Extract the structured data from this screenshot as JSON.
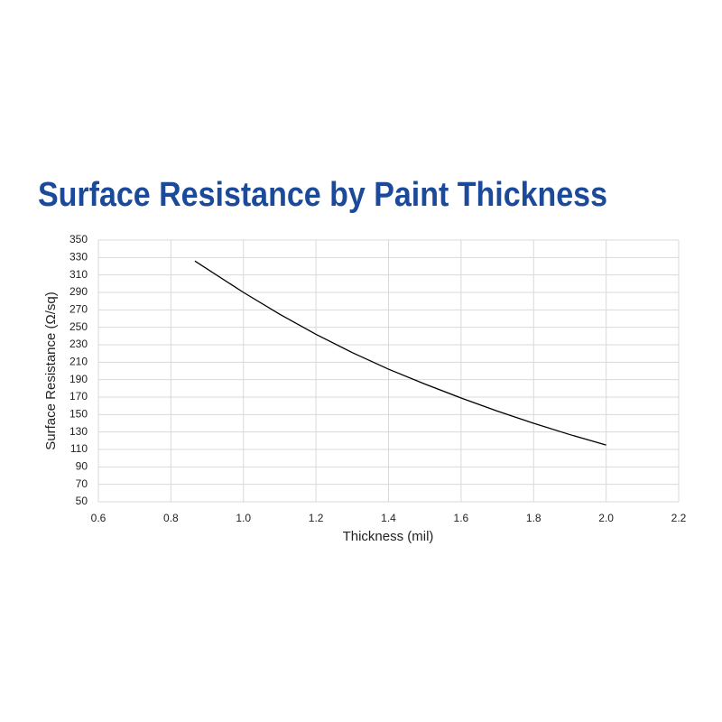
{
  "chart_data": {
    "type": "line",
    "title": "Surface Resistance by Paint Thickness",
    "x_label": "Thickness (mil)",
    "y_label": "Surface Resistance (Ω/sq)",
    "x": [
      0.866,
      1.0,
      1.1,
      1.2,
      1.3,
      1.4,
      1.5,
      1.6,
      1.7,
      1.8,
      1.9,
      2.0
    ],
    "values": [
      326,
      290,
      265,
      242,
      221,
      202,
      185,
      169,
      154,
      140,
      127,
      115
    ],
    "color": "#000000",
    "title_color": "#1b4a9b",
    "xlim": [
      0.6,
      2.2
    ],
    "xticks": [
      0.6,
      0.8,
      {
        "value": 1,
        "label": "1.0"
      },
      1.2,
      1.4,
      1.6,
      1.8,
      {
        "value": 2,
        "label": "2.0"
      },
      2.2
    ],
    "ylim": [
      50,
      350
    ],
    "yticks": [
      50,
      70,
      90,
      110,
      130,
      150,
      170,
      190,
      210,
      230,
      250,
      270,
      290,
      310,
      330,
      350
    ],
    "grid": true
  }
}
